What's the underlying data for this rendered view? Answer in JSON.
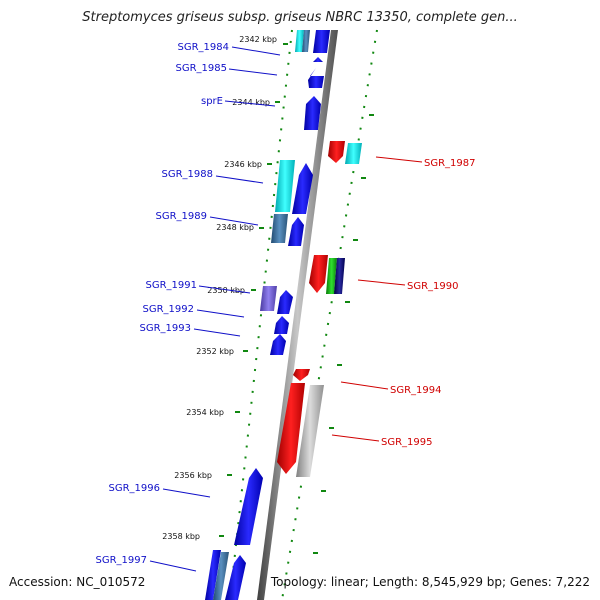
{
  "title": "Streptomyces griseus subsp. griseus NBRC 13350, complete gen...",
  "footer": {
    "accession": "Accession: NC_010572",
    "stats": "Topology: linear; Length: 8,545,929 bp; Genes: 7,222"
  },
  "colors": {
    "forward_gene": "#0a0ae0",
    "reverse_gene": "#e00000",
    "cyan_gene": "#00e0e8",
    "steel_gene": "#3c70a0",
    "purple_gene": "#7060d0",
    "gray_gene": "#a8a8a8",
    "green_gene": "#10b010",
    "navy_gene": "#101070",
    "backbone": "#777777",
    "tick_green": "#118811"
  },
  "ticks": [
    {
      "label": "2342 kbp"
    },
    {
      "label": "2344 kbp"
    },
    {
      "label": "2346 kbp"
    },
    {
      "label": "2348 kbp"
    },
    {
      "label": "2350 kbp"
    },
    {
      "label": "2352 kbp"
    },
    {
      "label": "2354 kbp"
    },
    {
      "label": "2356 kbp"
    },
    {
      "label": "2358 kbp"
    }
  ],
  "genes_left": [
    {
      "label": "SGR_1984"
    },
    {
      "label": "SGR_1985"
    },
    {
      "label": "sprE"
    },
    {
      "label": "SGR_1988"
    },
    {
      "label": "SGR_1989"
    },
    {
      "label": "SGR_1991"
    },
    {
      "label": "SGR_1992"
    },
    {
      "label": "SGR_1993"
    },
    {
      "label": "SGR_1996"
    },
    {
      "label": "SGR_1997"
    }
  ],
  "genes_right": [
    {
      "label": "SGR_1987"
    },
    {
      "label": "SGR_1990"
    },
    {
      "label": "SGR_1994"
    },
    {
      "label": "SGR_1995"
    }
  ]
}
